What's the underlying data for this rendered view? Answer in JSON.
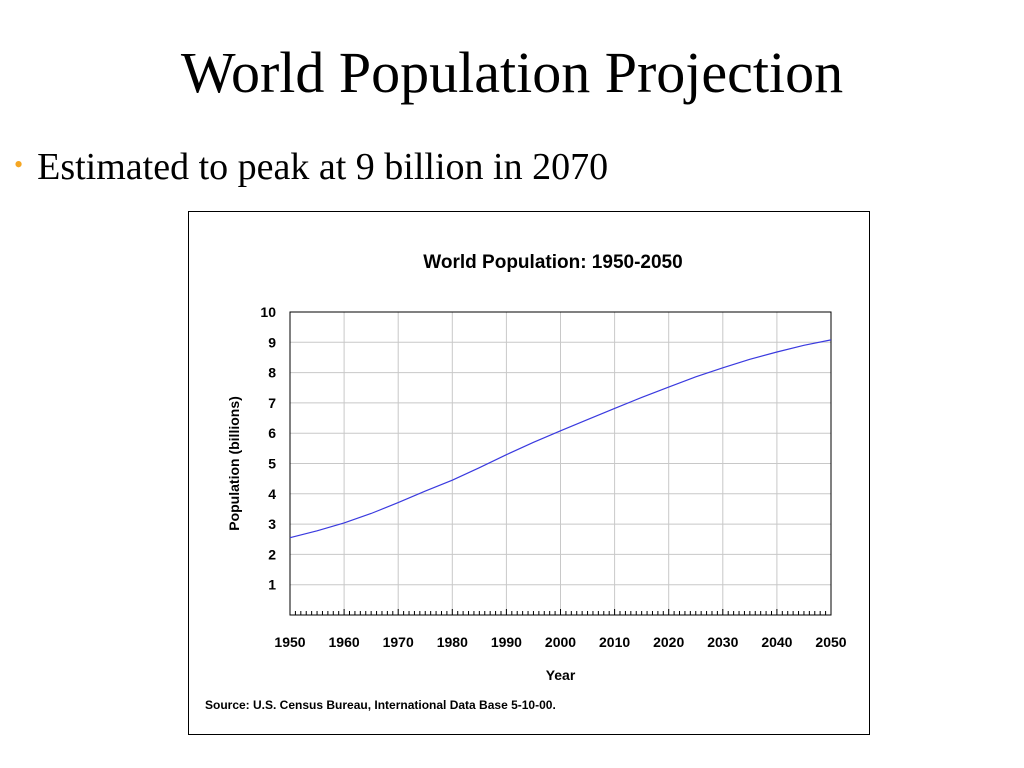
{
  "slide": {
    "title": "World Population Projection",
    "bullet": "Estimated to peak at 9 billion in 2070",
    "bullet_color": "#f5a623"
  },
  "chart_data": {
    "type": "line",
    "title": "World Population: 1950-2050",
    "xlabel": "Year",
    "ylabel": "Population (billions)",
    "source": "Source: U.S. Census Bureau, International Data Base 5-10-00.",
    "xlim": [
      1950,
      2050
    ],
    "ylim": [
      0,
      10
    ],
    "x_ticks": [
      1950,
      1960,
      1970,
      1980,
      1990,
      2000,
      2010,
      2020,
      2030,
      2040,
      2050
    ],
    "y_ticks": [
      1,
      2,
      3,
      4,
      5,
      6,
      7,
      8,
      9,
      10
    ],
    "grid": true,
    "line_color": "#3a3adf",
    "series": [
      {
        "x": [
          1950,
          1955,
          1960,
          1965,
          1970,
          1975,
          1980,
          1985,
          1990,
          1995,
          2000,
          2005,
          2010,
          2015,
          2020,
          2025,
          2030,
          2035,
          2040,
          2045,
          2050
        ],
        "values": [
          2.55,
          2.78,
          3.04,
          3.35,
          3.71,
          4.09,
          4.45,
          4.86,
          5.29,
          5.7,
          6.08,
          6.45,
          6.82,
          7.18,
          7.52,
          7.86,
          8.16,
          8.44,
          8.68,
          8.9,
          9.08
        ]
      }
    ]
  }
}
